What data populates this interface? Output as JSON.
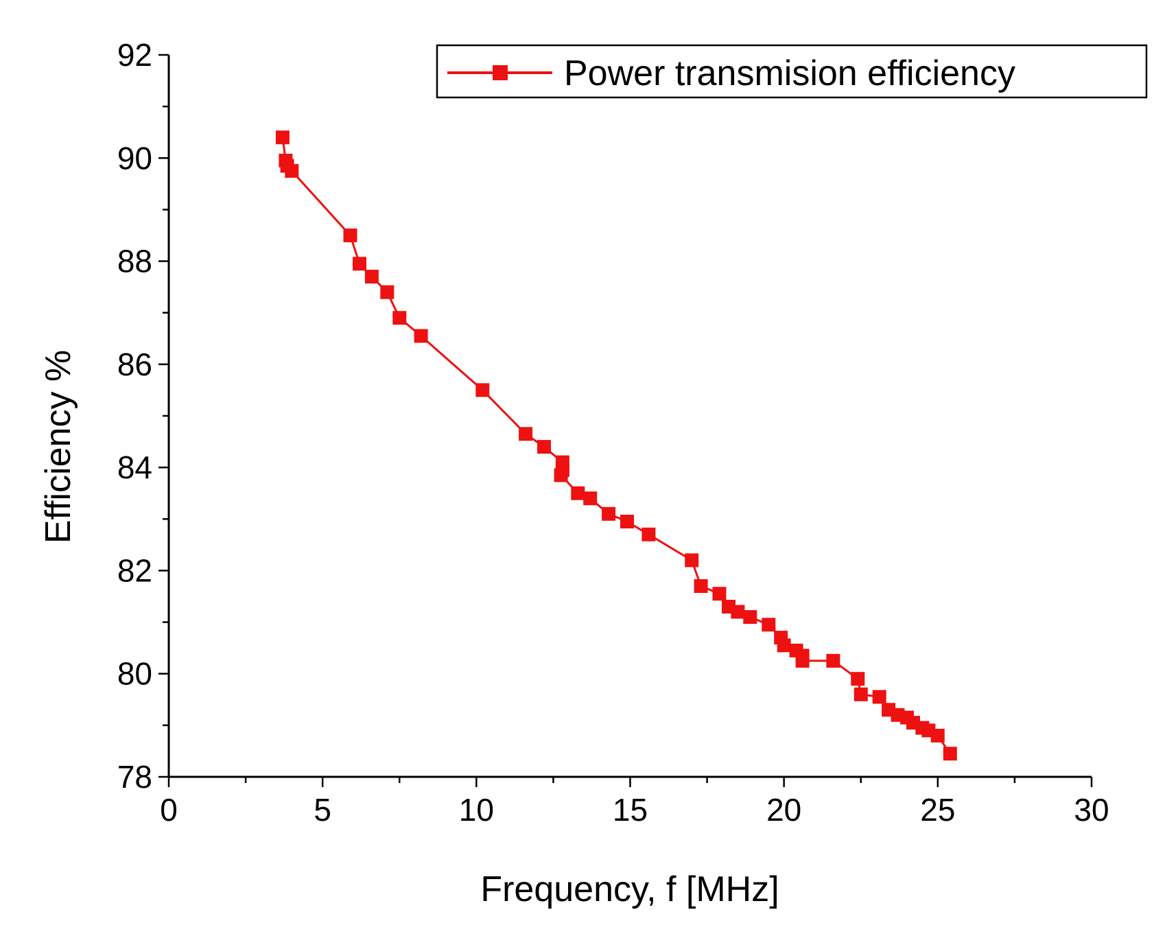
{
  "chart_data": {
    "type": "line",
    "title": "",
    "xlabel": "Frequency, f [MHz]",
    "ylabel": "Efficiency %",
    "xlim": [
      0,
      30
    ],
    "ylim": [
      78,
      92
    ],
    "x_major_ticks": [
      0,
      5,
      10,
      15,
      20,
      25,
      30
    ],
    "x_tick_labels": [
      "0",
      "5",
      "10",
      "15",
      "20",
      "25",
      "30"
    ],
    "y_major_ticks": [
      78,
      80,
      82,
      84,
      86,
      88,
      90,
      92
    ],
    "y_tick_labels": [
      "78",
      "80",
      "82",
      "84",
      "86",
      "88",
      "90",
      "92"
    ],
    "grid": false,
    "legend": {
      "position": "top-right",
      "entries": [
        "Power transmision efficiency"
      ]
    },
    "series": [
      {
        "name": "Power transmision efficiency",
        "color": "#ee1111",
        "marker": "square",
        "line_style": "solid",
        "points": [
          [
            3.7,
            90.4
          ],
          [
            3.8,
            89.95
          ],
          [
            3.85,
            89.85
          ],
          [
            4.0,
            89.75
          ],
          [
            5.9,
            88.5
          ],
          [
            6.2,
            87.95
          ],
          [
            6.6,
            87.7
          ],
          [
            7.1,
            87.4
          ],
          [
            7.5,
            86.9
          ],
          [
            8.2,
            86.55
          ],
          [
            10.2,
            85.5
          ],
          [
            11.6,
            84.65
          ],
          [
            12.2,
            84.4
          ],
          [
            12.8,
            84.1
          ],
          [
            12.8,
            83.95
          ],
          [
            12.75,
            83.85
          ],
          [
            13.3,
            83.5
          ],
          [
            13.7,
            83.4
          ],
          [
            14.3,
            83.1
          ],
          [
            14.9,
            82.95
          ],
          [
            15.6,
            82.7
          ],
          [
            17.0,
            82.2
          ],
          [
            17.3,
            81.7
          ],
          [
            17.9,
            81.55
          ],
          [
            18.2,
            81.3
          ],
          [
            18.5,
            81.2
          ],
          [
            18.9,
            81.1
          ],
          [
            19.5,
            80.95
          ],
          [
            19.9,
            80.7
          ],
          [
            20.0,
            80.55
          ],
          [
            20.4,
            80.45
          ],
          [
            20.6,
            80.35
          ],
          [
            20.6,
            80.25
          ],
          [
            21.6,
            80.25
          ],
          [
            22.4,
            79.9
          ],
          [
            22.5,
            79.6
          ],
          [
            23.1,
            79.55
          ],
          [
            23.4,
            79.3
          ],
          [
            23.7,
            79.2
          ],
          [
            24.0,
            79.15
          ],
          [
            24.2,
            79.05
          ],
          [
            24.5,
            78.95
          ],
          [
            24.7,
            78.9
          ],
          [
            25.0,
            78.8
          ],
          [
            25.4,
            78.45
          ]
        ]
      }
    ]
  }
}
